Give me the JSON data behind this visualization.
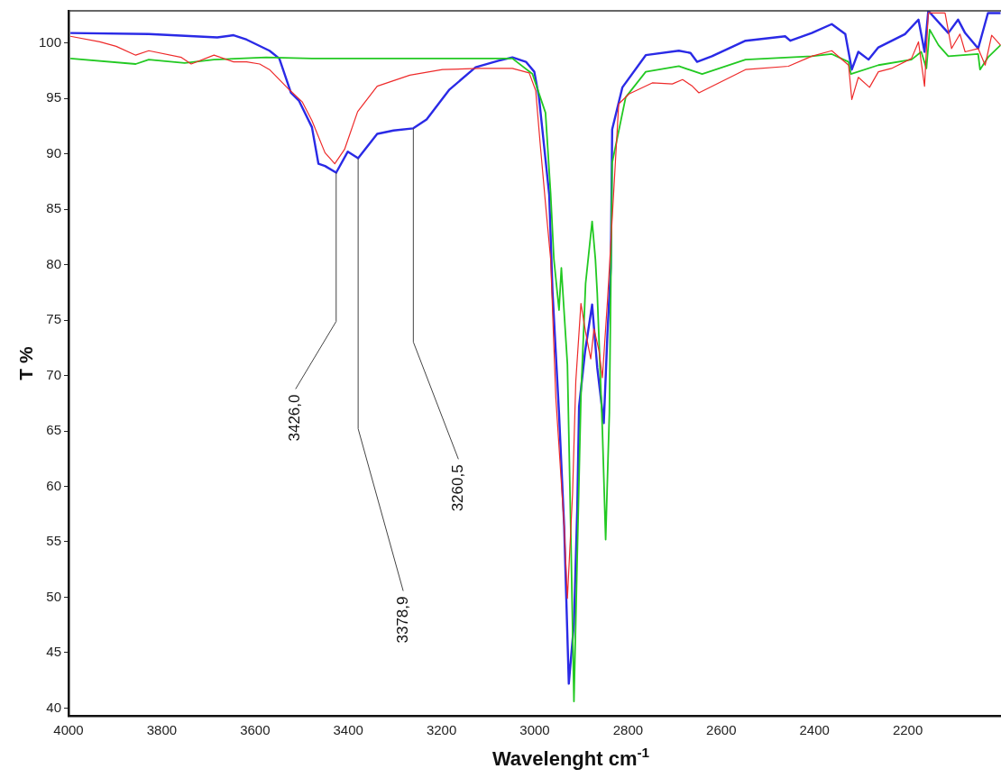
{
  "chart_data": {
    "type": "line",
    "xlabel": "Wavelenght cm$^{-1}$",
    "ylabel": "T %",
    "xlim": [
      4000,
      2000
    ],
    "ylim": [
      39.3,
      102.9
    ],
    "xticks": [
      4000,
      3800,
      3600,
      3400,
      3200,
      3000,
      2800,
      2600,
      2400,
      2200
    ],
    "yticks": [
      40,
      45,
      50,
      55,
      60,
      65,
      70,
      75,
      80,
      85,
      90,
      95,
      100
    ],
    "grid": false,
    "legend": false,
    "marker": "none",
    "line_style": "solid",
    "series": [
      {
        "color": "#ee2a2a",
        "x": [
          3996,
          3933,
          3898,
          3856,
          3828,
          3758,
          3737,
          3688,
          3646,
          3618,
          3590,
          3569,
          3527,
          3499,
          3478,
          3450,
          3429,
          3408,
          3380,
          3338,
          3268,
          3198,
          3119,
          3048,
          3012,
          2998,
          2988,
          2977,
          2966,
          2955,
          2937,
          2930,
          2919,
          2912,
          2901,
          2891,
          2880,
          2873,
          2862,
          2855,
          2844,
          2840,
          2820,
          2798,
          2748,
          2705,
          2683,
          2662,
          2648,
          2548,
          2456,
          2406,
          2363,
          2327,
          2320,
          2306,
          2282,
          2263,
          2235,
          2192,
          2177,
          2164,
          2156,
          2120,
          2106,
          2088,
          2077,
          2049,
          2034,
          2020,
          2001
        ],
        "values": [
          100.6,
          100.1,
          99.7,
          98.9,
          99.3,
          98.7,
          98.1,
          98.9,
          98.3,
          98.3,
          98.1,
          97.6,
          95.8,
          94.7,
          93.0,
          90.1,
          89.1,
          90.4,
          93.8,
          96.1,
          97.1,
          97.6,
          97.7,
          97.7,
          97.3,
          95.7,
          90.7,
          85.5,
          80.5,
          68.1,
          56.4,
          49.9,
          59.3,
          69.5,
          76.5,
          73.9,
          71.5,
          74.2,
          72.2,
          69.8,
          76.8,
          79.7,
          94.5,
          95.4,
          96.4,
          96.3,
          96.7,
          96.1,
          95.5,
          97.6,
          97.9,
          98.8,
          99.3,
          98.0,
          94.9,
          96.9,
          96.0,
          97.4,
          97.7,
          98.6,
          100.1,
          96.1,
          102.7,
          102.7,
          99.5,
          100.8,
          99.2,
          99.5,
          98.0,
          100.7,
          99.8
        ]
      },
      {
        "color": "#22c922",
        "x": [
          3996,
          3856,
          3828,
          3751,
          3688,
          3576,
          3478,
          3127,
          3048,
          3005,
          2977,
          2966,
          2959,
          2948,
          2943,
          2930,
          2923,
          2916,
          2909,
          2901,
          2891,
          2877,
          2870,
          2866,
          2855,
          2848,
          2840,
          2834,
          2805,
          2762,
          2691,
          2641,
          2548,
          2406,
          2363,
          2327,
          2322,
          2263,
          2192,
          2171,
          2160,
          2153,
          2134,
          2113,
          2049,
          2045,
          2028,
          2001
        ],
        "values": [
          98.6,
          98.1,
          98.5,
          98.2,
          98.5,
          98.7,
          98.6,
          98.6,
          98.6,
          97.2,
          93.7,
          86.4,
          80.5,
          75.9,
          79.7,
          71.0,
          56.4,
          40.6,
          53.5,
          68.1,
          78.3,
          83.9,
          80.5,
          77.4,
          65.1,
          55.2,
          66.6,
          89.2,
          95.1,
          97.4,
          97.9,
          97.2,
          98.5,
          98.8,
          99.0,
          98.3,
          97.2,
          98.0,
          98.5,
          99.2,
          97.7,
          101.2,
          99.8,
          98.8,
          99.0,
          97.6,
          98.7,
          99.8
        ]
      },
      {
        "color": "#2a2ae6",
        "x": [
          3996,
          3828,
          3681,
          3646,
          3618,
          3569,
          3548,
          3523,
          3506,
          3478,
          3464,
          3450,
          3426,
          3401,
          3378.9,
          3338,
          3303,
          3260.5,
          3232,
          3183,
          3127,
          3078,
          3048,
          3019,
          3001,
          2991,
          2980,
          2969,
          2962,
          2948,
          2937,
          2927,
          2916,
          2909,
          2905,
          2892,
          2877,
          2866,
          2852,
          2844,
          2837,
          2834,
          2812,
          2762,
          2691,
          2666,
          2652,
          2620,
          2548,
          2463,
          2452,
          2406,
          2363,
          2334,
          2327,
          2320,
          2306,
          2284,
          2263,
          2206,
          2177,
          2164,
          2156,
          2113,
          2092,
          2077,
          2049,
          2028,
          2001
        ],
        "values": [
          100.9,
          100.8,
          100.5,
          100.7,
          100.3,
          99.3,
          98.6,
          95.5,
          94.8,
          92.4,
          89.1,
          88.9,
          88.3,
          90.2,
          89.6,
          91.8,
          92.1,
          92.3,
          93.1,
          95.8,
          97.8,
          98.4,
          98.7,
          98.3,
          97.4,
          95.1,
          90.7,
          86.3,
          77.6,
          66.6,
          56.4,
          42.2,
          47.6,
          57.8,
          67.2,
          72.2,
          76.4,
          70.7,
          65.7,
          73.9,
          79.7,
          92.2,
          96.0,
          98.9,
          99.3,
          99.1,
          98.3,
          98.8,
          100.2,
          100.6,
          100.2,
          100.9,
          101.7,
          100.8,
          99.2,
          97.6,
          99.2,
          98.5,
          99.6,
          100.8,
          102.1,
          99.2,
          102.9,
          100.9,
          102.1,
          100.9,
          99.5,
          102.7,
          102.7
        ]
      }
    ],
    "annotations": [
      {
        "text": "3426,0",
        "x": 3426,
        "y": 88.3
      },
      {
        "text": "3378,9",
        "x": 3378.9,
        "y": 89.6
      },
      {
        "text": "3260,5",
        "x": 3260.5,
        "y": 92.3
      }
    ]
  }
}
